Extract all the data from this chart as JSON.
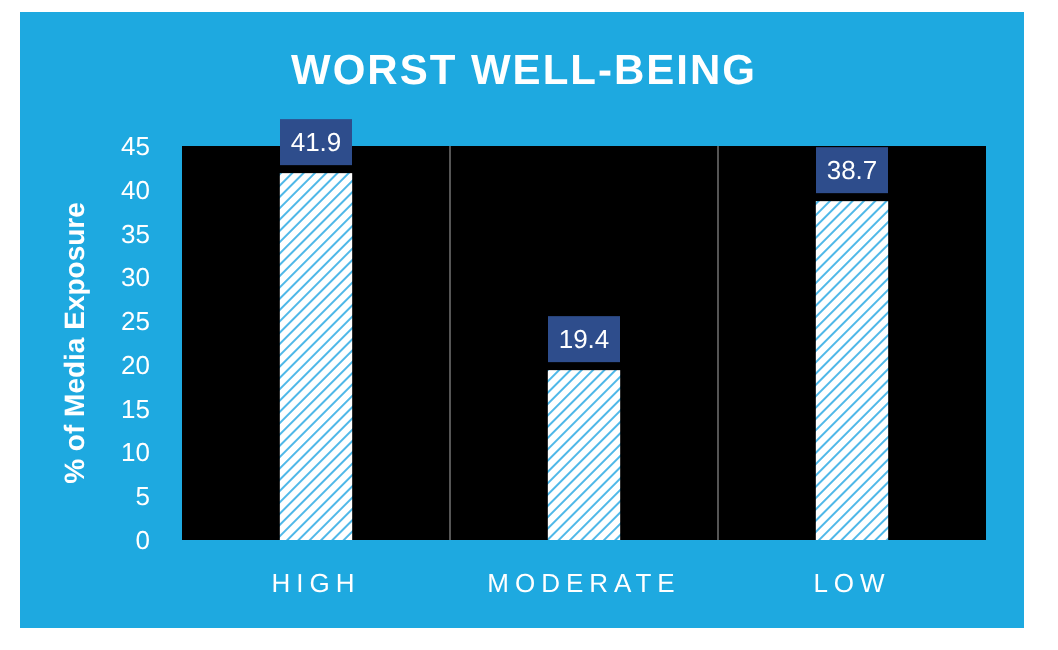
{
  "chart_data": {
    "type": "bar",
    "title": "WORST WELL-BEING",
    "ylabel": "% of Media Exposure",
    "categories": [
      "HIGH",
      "MODERATE",
      "LOW"
    ],
    "values": [
      41.9,
      19.4,
      38.7
    ],
    "color": "#4fb8e8",
    "ylim": [
      0,
      45
    ],
    "yticks": [
      0,
      5,
      10,
      15,
      20,
      25,
      30,
      35,
      40,
      45
    ],
    "grid": false,
    "data_labels": true
  }
}
